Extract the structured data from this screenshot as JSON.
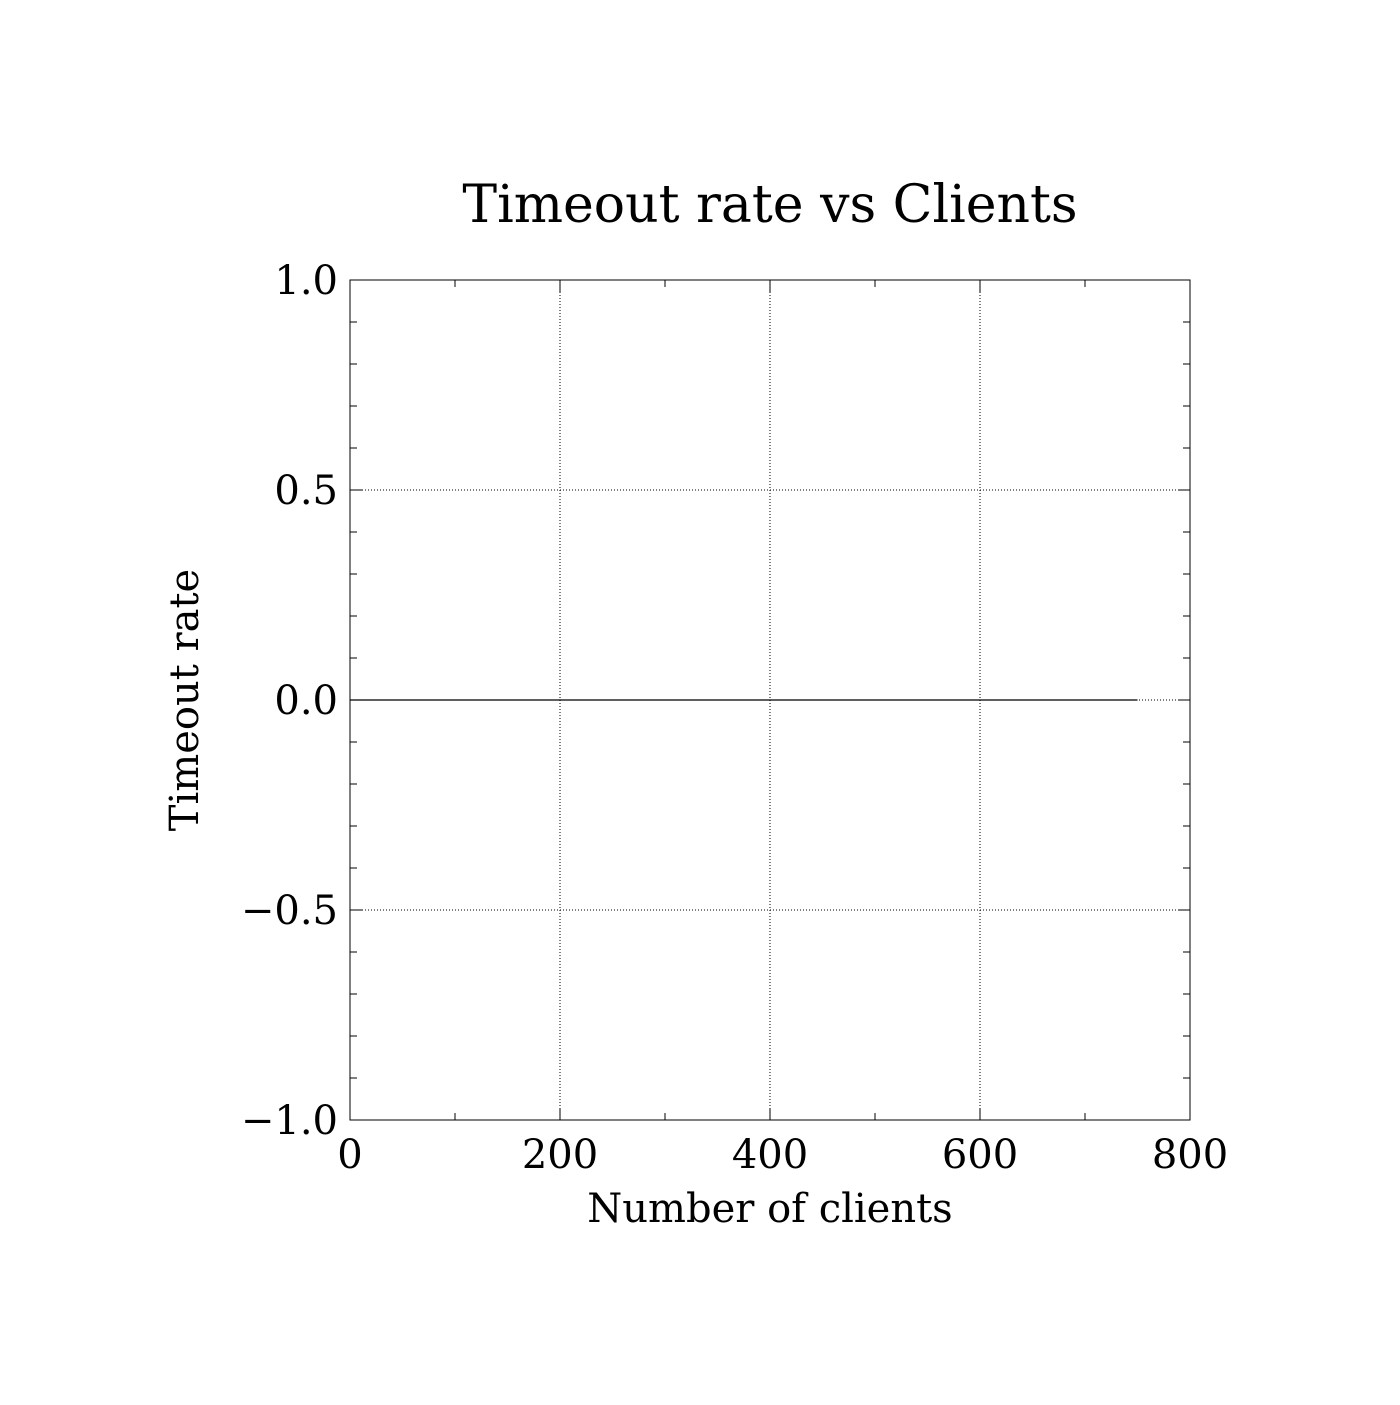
{
  "chart_data": {
    "type": "line",
    "title": "Timeout rate vs Clients",
    "xlabel": "Number of clients",
    "ylabel": "Timeout rate",
    "xlim": [
      0,
      800
    ],
    "ylim": [
      -1.0,
      1.0
    ],
    "x_ticks": [
      0,
      200,
      400,
      600,
      800
    ],
    "x_tick_labels": [
      "0",
      "200",
      "400",
      "600",
      "800"
    ],
    "x_minor_step": 100,
    "y_ticks": [
      -1.0,
      -0.5,
      0.0,
      0.5,
      1.0
    ],
    "y_tick_labels": [
      "−1.0",
      "−0.5",
      "0.0",
      "0.5",
      "1.0"
    ],
    "y_minor_step": 0.1,
    "grid": true,
    "grid_style": "dotted",
    "series": [
      {
        "x": [
          0,
          50,
          100,
          150,
          200,
          250,
          300,
          350,
          400,
          450,
          500,
          550,
          600,
          650,
          700,
          750
        ],
        "y": [
          0,
          0,
          0,
          0,
          0,
          0,
          0,
          0,
          0,
          0,
          0,
          0,
          0,
          0,
          0,
          0
        ],
        "color": "#000000"
      }
    ]
  }
}
